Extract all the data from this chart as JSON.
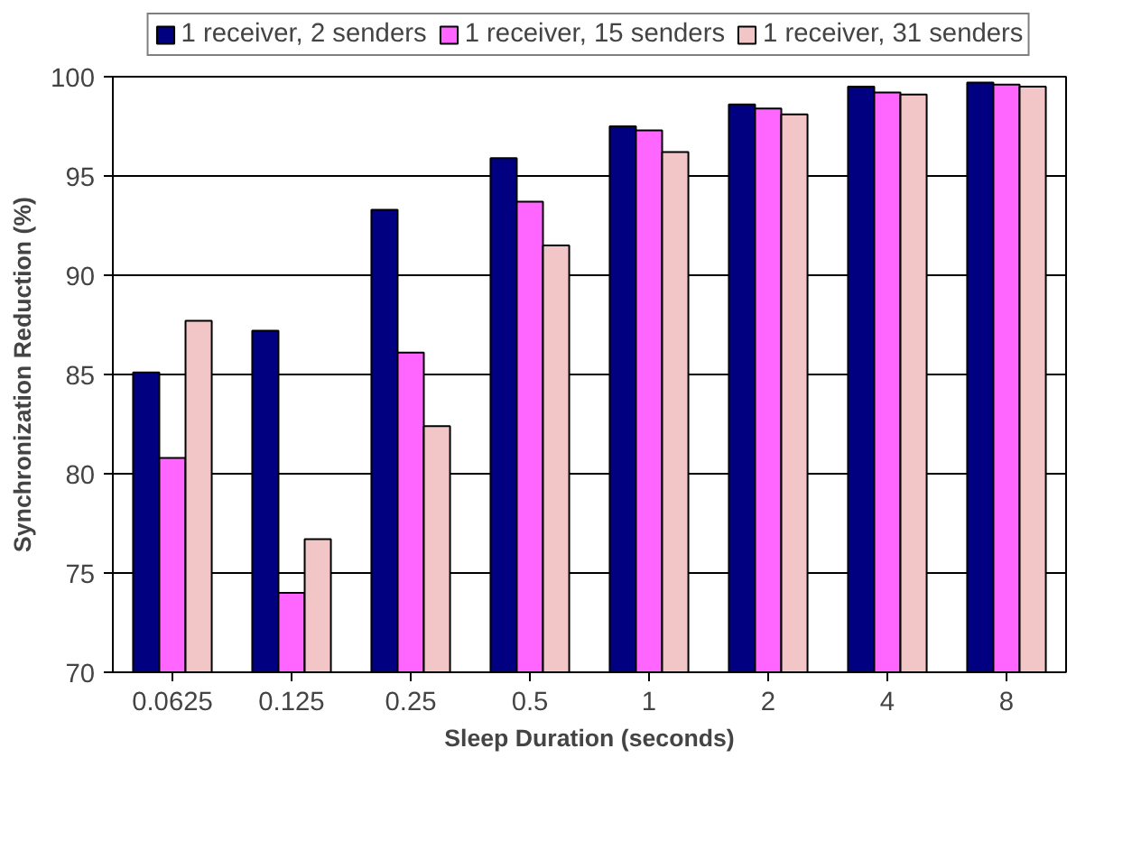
{
  "chart_data": {
    "type": "bar",
    "xlabel": "Sleep Duration (seconds)",
    "ylabel": "Synchronization Reduction (%)",
    "categories": [
      "0.0625",
      "0.125",
      "0.25",
      "0.5",
      "1",
      "2",
      "4",
      "8"
    ],
    "series": [
      {
        "name": "1 receiver, 2 senders",
        "color": "#000080",
        "values": [
          85.1,
          87.2,
          93.3,
          95.9,
          97.5,
          98.6,
          99.5,
          99.7
        ]
      },
      {
        "name": "1 receiver, 15 senders",
        "color": "#ff66ff",
        "values": [
          80.8,
          74.0,
          86.1,
          93.7,
          97.3,
          98.4,
          99.2,
          99.6
        ]
      },
      {
        "name": "1 receiver, 31 senders",
        "color": "#f2c6c6",
        "values": [
          87.7,
          76.7,
          82.4,
          91.5,
          96.2,
          98.1,
          99.1,
          99.5
        ]
      }
    ],
    "ylim": [
      70,
      100
    ],
    "yticks": [
      70,
      75,
      80,
      85,
      90,
      95,
      100
    ],
    "grid": "y",
    "legend": "top"
  }
}
